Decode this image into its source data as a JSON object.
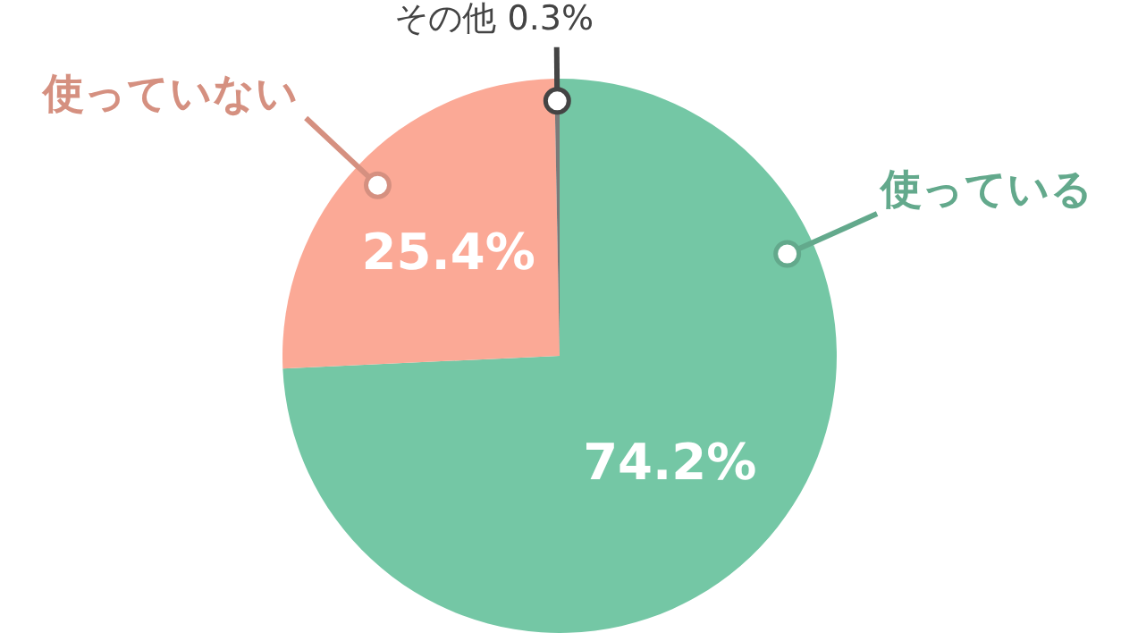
{
  "chart_data": {
    "type": "pie",
    "categories": [
      "使っている",
      "使っていない",
      "その他"
    ],
    "values": [
      74.2,
      25.4,
      0.3
    ],
    "colors": [
      "#74c7a5",
      "#fba996",
      "#7a7a7a"
    ],
    "value_labels": [
      "74.2%",
      "25.4%",
      "0.3%"
    ]
  }
}
